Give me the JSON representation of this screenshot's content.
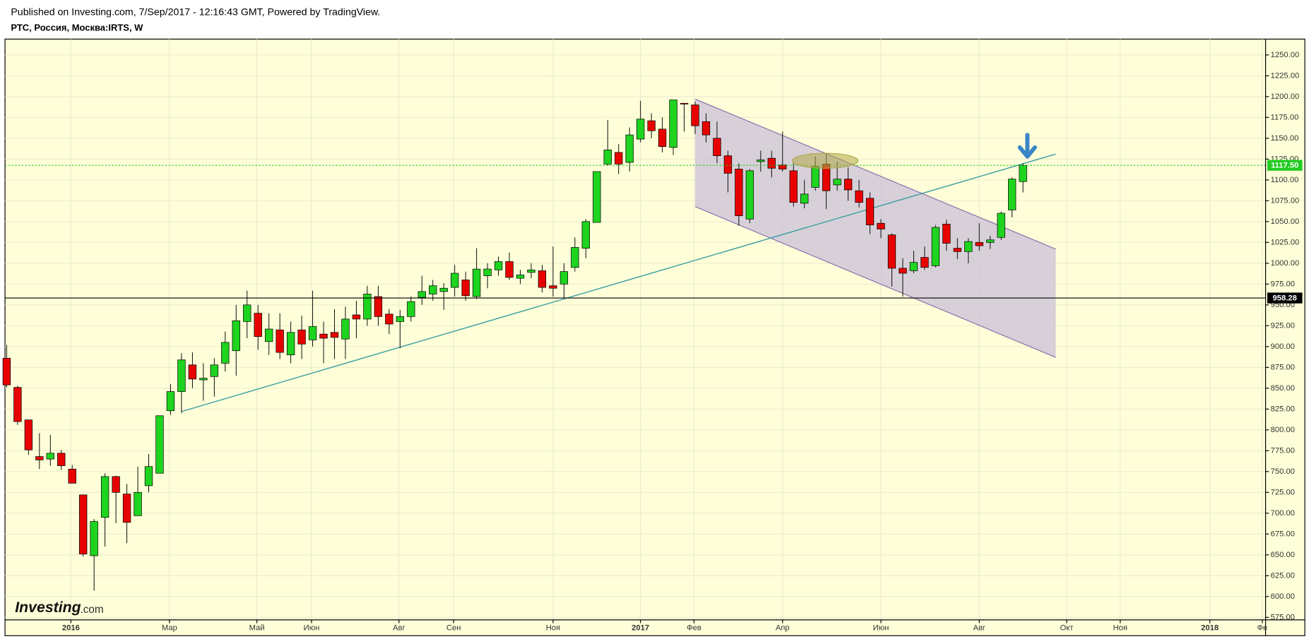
{
  "header": {
    "published": "Published on Investing.com, 7/Sep/2017 - 12:16:43 GMT, Powered by TradingView.",
    "symbol": "РТС, Россия, Москва:IRTS, W"
  },
  "logo": {
    "brand": "Investing",
    "suffix": ".com"
  },
  "chart_data": {
    "type": "candlestick",
    "up_color": "#1ed41e",
    "down_color": "#e80000",
    "open": [
      886,
      851,
      812,
      768,
      765,
      772,
      753,
      722,
      649,
      695,
      744,
      723,
      697,
      733,
      748,
      823,
      846,
      878,
      860,
      864,
      880,
      895,
      930,
      940,
      906,
      920,
      890,
      920,
      908,
      915,
      917,
      909,
      938,
      933,
      960,
      939,
      930,
      936,
      959,
      963,
      966,
      971,
      980,
      960,
      985,
      992,
      1002,
      982,
      989,
      991,
      973,
      975,
      995,
      1018,
      1049,
      1119,
      1133,
      1121,
      1149,
      1171,
      1161,
      1139,
      1192,
      1190,
      1170,
      1150,
      1129,
      1113,
      1053,
      1122,
      1126,
      1118,
      1111,
      1072,
      1091,
      1119,
      1094,
      1101,
      1087,
      1078,
      1048,
      1034,
      994,
      991,
      1007,
      997,
      1047,
      1018,
      1014,
      1025,
      1025,
      1031,
      1064,
      1098
    ],
    "high": [
      902,
      853,
      812,
      796,
      794,
      776,
      758,
      722,
      693,
      748,
      745,
      735,
      756,
      771,
      817,
      855,
      892,
      893,
      880,
      886,
      918,
      950,
      967,
      950,
      940,
      940,
      930,
      937,
      967,
      930,
      945,
      948,
      955,
      973,
      973,
      945,
      944,
      960,
      985,
      980,
      976,
      998,
      990,
      1018,
      1000,
      1008,
      1013,
      992,
      1000,
      998,
      1020,
      1000,
      1031,
      1053,
      1110,
      1172,
      1143,
      1163,
      1195,
      1180,
      1175,
      1196,
      1192,
      1194,
      1180,
      1170,
      1135,
      1120,
      1113,
      1135,
      1135,
      1158,
      1120,
      1100,
      1128,
      1132,
      1122,
      1115,
      1100,
      1085,
      1053,
      1036,
      1006,
      1015,
      1020,
      1046,
      1052,
      1030,
      1030,
      1048,
      1033,
      1062,
      1103,
      1120
    ],
    "low": [
      851,
      806,
      770,
      753,
      757,
      752,
      736,
      648,
      607,
      660,
      688,
      664,
      697,
      725,
      748,
      818,
      820,
      850,
      835,
      840,
      870,
      865,
      910,
      896,
      890,
      885,
      880,
      885,
      900,
      880,
      885,
      885,
      910,
      925,
      925,
      915,
      898,
      930,
      950,
      955,
      944,
      960,
      955,
      957,
      970,
      985,
      980,
      975,
      982,
      965,
      960,
      958,
      990,
      1006,
      1049,
      1117,
      1107,
      1110,
      1145,
      1150,
      1133,
      1130,
      1158,
      1155,
      1145,
      1120,
      1085,
      1045,
      1048,
      1110,
      1103,
      1110,
      1068,
      1066,
      1087,
      1065,
      1087,
      1075,
      1067,
      1035,
      1030,
      972,
      960,
      988,
      992,
      995,
      1015,
      1005,
      1000,
      1015,
      1017,
      1028,
      1055,
      1085
    ],
    "close": [
      854,
      810,
      776,
      764,
      772,
      757,
      736,
      651,
      690,
      744,
      725,
      689,
      725,
      756,
      817,
      846,
      884,
      861,
      862,
      878,
      905,
      931,
      950,
      912,
      921,
      893,
      917,
      903,
      924,
      910,
      911,
      933,
      933,
      963,
      936,
      927,
      936,
      954,
      966,
      973,
      970,
      988,
      961,
      993,
      993,
      1002,
      983,
      986,
      992,
      971,
      970,
      990,
      1019,
      1050,
      1110,
      1136,
      1119,
      1154,
      1173,
      1159,
      1140,
      1196,
      1191,
      1165,
      1154,
      1129,
      1108,
      1057,
      1111,
      1124,
      1114,
      1113,
      1073,
      1083,
      1116,
      1087,
      1101,
      1088,
      1073,
      1046,
      1041,
      994,
      988,
      1001,
      995,
      1043,
      1024,
      1014,
      1026,
      1021,
      1028,
      1060,
      1101,
      1117.5
    ],
    "xlim": [
      -0.15,
      115.2
    ],
    "xticks": [
      {
        "value": 5.88,
        "label": "2016"
      },
      {
        "value": 14.9,
        "label": "Мар"
      },
      {
        "value": 22.9,
        "label": "Май"
      },
      {
        "value": 27.9,
        "label": "Июн"
      },
      {
        "value": 35.9,
        "label": "Авг"
      },
      {
        "value": 40.9,
        "label": "Сен"
      },
      {
        "value": 50.0,
        "label": "Ноя"
      },
      {
        "value": 58.0,
        "label": "2017"
      },
      {
        "value": 62.9,
        "label": "Фев"
      },
      {
        "value": 71.0,
        "label": "Апр"
      },
      {
        "value": 80.0,
        "label": "Июн"
      },
      {
        "value": 89.0,
        "label": "Авг"
      },
      {
        "value": 97.0,
        "label": "Окт"
      },
      {
        "value": 101.9,
        "label": "Ноя"
      },
      {
        "value": 110.1,
        "label": "2018"
      },
      {
        "value": 114.9,
        "label": "Фе"
      }
    ],
    "ylim": [
      572,
      1269
    ],
    "yticks": [
      {
        "value": 575,
        "label": "575.00"
      },
      {
        "value": 600,
        "label": "600.00"
      },
      {
        "value": 625,
        "label": "625.00"
      },
      {
        "value": 650,
        "label": "650.00"
      },
      {
        "value": 675,
        "label": "675.00"
      },
      {
        "value": 700,
        "label": "700.00"
      },
      {
        "value": 725,
        "label": "725.00"
      },
      {
        "value": 750,
        "label": "750.00"
      },
      {
        "value": 775,
        "label": "775.00"
      },
      {
        "value": 800,
        "label": "800.00"
      },
      {
        "value": 825,
        "label": "825.00"
      },
      {
        "value": 850,
        "label": "850.00"
      },
      {
        "value": 875,
        "label": "875.00"
      },
      {
        "value": 900,
        "label": "900.00"
      },
      {
        "value": 925,
        "label": "925.00"
      },
      {
        "value": 950,
        "label": "950.00"
      },
      {
        "value": 975,
        "label": "975.00"
      },
      {
        "value": 1000,
        "label": "1000.00"
      },
      {
        "value": 1025,
        "label": "1025.00"
      },
      {
        "value": 1050,
        "label": "1050.00"
      },
      {
        "value": 1075,
        "label": "1075.00"
      },
      {
        "value": 1100,
        "label": "1100.00"
      },
      {
        "value": 1125,
        "label": "1125.00"
      },
      {
        "value": 1150,
        "label": "1150.00"
      },
      {
        "value": 1175,
        "label": "1175.00"
      },
      {
        "value": 1200,
        "label": "1200.00"
      },
      {
        "value": 1225,
        "label": "1225.00"
      },
      {
        "value": 1250,
        "label": "1250.00"
      }
    ],
    "grid": true,
    "price_lines": [
      {
        "value": 958.28,
        "label": "958.28",
        "color": "#000000",
        "text_color": "#ffffff"
      },
      {
        "value": 1117.5,
        "label": "1117.50",
        "color": "#22cc22",
        "text_color": "#ffffff"
      }
    ],
    "trendline": {
      "x": [
        16,
        96
      ],
      "y": [
        822,
        1131
      ],
      "color": "#3a9ea2"
    },
    "channel": {
      "x": [
        63,
        96
      ],
      "upper": [
        1197,
        1017
      ],
      "lower": [
        1068,
        887
      ],
      "color": "#8a6cb0",
      "fill": "#c8bcd8"
    },
    "ellipse": {
      "x": 74.9,
      "y": 1123,
      "rx": 3.0,
      "ry": 9,
      "color": "#b0a848"
    },
    "arrow": {
      "x": 93.4,
      "y": [
        1154,
        1128
      ],
      "color": "#3a86c8"
    }
  }
}
